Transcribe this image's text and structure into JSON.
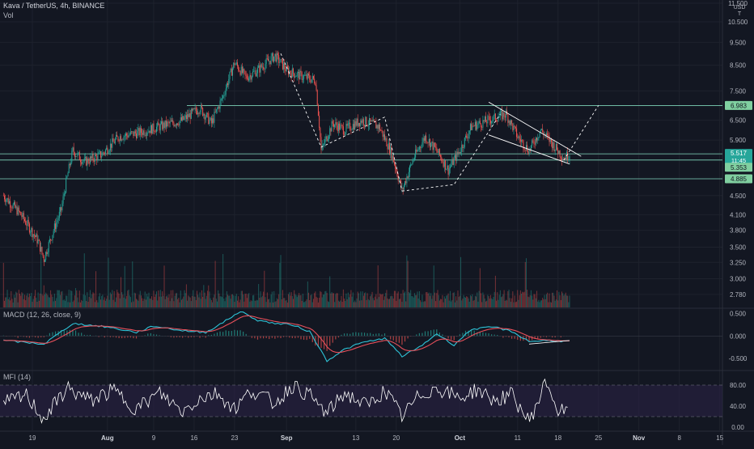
{
  "header": {
    "symbol_line": "Kava / TetherUS, 4h, BINANCE",
    "volume_label": "Vol",
    "currency_top": "11.500",
    "currency_unit_1": "USD",
    "currency_unit_2": "T"
  },
  "colors": {
    "background": "#131722",
    "up": "#26a69a",
    "down": "#ef5350",
    "grid": "#1e222d",
    "level_line": "#7dd3b8",
    "price_tag_green": "#80cfa0",
    "current_price_tag": "#26a69a",
    "macd_line": "#2ec4d8",
    "signal_line": "#e8505b",
    "mfi_line": "#ffffff",
    "mfi_band": "#2a2244"
  },
  "chart_data": [
    {
      "type": "candlestick",
      "title": "Kava / TetherUS, 4h, BINANCE",
      "y_scale": "log",
      "ylim": [
        2.65,
        11.5
      ],
      "y_ticks": [
        "11.500",
        "10.500",
        "9.500",
        "8.500",
        "7.500",
        "6.500",
        "5.900",
        "5.500",
        "5.353",
        "4.885",
        "4.500",
        "4.100",
        "3.800",
        "3.500",
        "3.250",
        "3.000",
        "2.780"
      ],
      "x_ticks": [
        "19",
        "Aug",
        "9",
        "16",
        "23",
        "Sep",
        "13",
        "20",
        "Oct",
        "11",
        "18",
        "25",
        "Nov",
        "8",
        "15"
      ],
      "levels": [
        6.983,
        5.517,
        5.353,
        4.885
      ],
      "level_labels": [
        "6.983",
        "5.517",
        "5.353",
        "4.885"
      ],
      "current_price": "5.517",
      "countdown": "11:45",
      "close_path": [
        {
          "date": "Jul 14",
          "price": 4.5
        },
        {
          "date": "Jul 17",
          "price": 4.1
        },
        {
          "date": "Jul 20",
          "price": 3.6
        },
        {
          "date": "Jul 21",
          "price": 3.3
        },
        {
          "date": "Jul 24",
          "price": 4.2
        },
        {
          "date": "Jul 26",
          "price": 5.6
        },
        {
          "date": "Jul 28",
          "price": 5.3
        },
        {
          "date": "Jul 31",
          "price": 5.5
        },
        {
          "date": "Aug 3",
          "price": 6.0
        },
        {
          "date": "Aug 6",
          "price": 6.1
        },
        {
          "date": "Aug 10",
          "price": 6.3
        },
        {
          "date": "Aug 14",
          "price": 6.5
        },
        {
          "date": "Aug 17",
          "price": 6.9
        },
        {
          "date": "Aug 19",
          "price": 6.4
        },
        {
          "date": "Aug 21",
          "price": 7.3
        },
        {
          "date": "Aug 23",
          "price": 8.6
        },
        {
          "date": "Aug 25",
          "price": 8.0
        },
        {
          "date": "Aug 27",
          "price": 8.3
        },
        {
          "date": "Aug 30",
          "price": 8.9
        },
        {
          "date": "Sep 1",
          "price": 8.3
        },
        {
          "date": "Sep 3",
          "price": 8.1
        },
        {
          "date": "Sep 6",
          "price": 7.9
        },
        {
          "date": "Sep 7",
          "price": 5.6
        },
        {
          "date": "Sep 9",
          "price": 6.4
        },
        {
          "date": "Sep 11",
          "price": 6.2
        },
        {
          "date": "Sep 14",
          "price": 6.5
        },
        {
          "date": "Sep 17",
          "price": 6.3
        },
        {
          "date": "Sep 19",
          "price": 5.6
        },
        {
          "date": "Sep 21",
          "price": 4.6
        },
        {
          "date": "Sep 23",
          "price": 5.4
        },
        {
          "date": "Sep 25",
          "price": 6.0
        },
        {
          "date": "Sep 27",
          "price": 5.6
        },
        {
          "date": "Sep 29",
          "price": 5.1
        },
        {
          "date": "Oct 1",
          "price": 5.6
        },
        {
          "date": "Oct 3",
          "price": 6.3
        },
        {
          "date": "Oct 6",
          "price": 6.5
        },
        {
          "date": "Oct 9",
          "price": 6.7
        },
        {
          "date": "Oct 11",
          "price": 6.0
        },
        {
          "date": "Oct 13",
          "price": 5.6
        },
        {
          "date": "Oct 15",
          "price": 6.2
        },
        {
          "date": "Oct 17",
          "price": 5.8
        },
        {
          "date": "Oct 19",
          "price": 5.4
        },
        {
          "date": "Oct 20",
          "price": 5.517
        }
      ]
    },
    {
      "type": "bar",
      "name": "Vol",
      "description": "volume histogram"
    },
    {
      "type": "line",
      "legend": "MACD (12, 26, close, 9)",
      "ylim": [
        -0.75,
        0.6
      ],
      "y_ticks": [
        "0.500",
        "0.000",
        "-0.500"
      ],
      "macd": [
        {
          "date": "Jul 14",
          "value": -0.1
        },
        {
          "date": "Jul 21",
          "value": -0.18
        },
        {
          "date": "Jul 26",
          "value": 0.28
        },
        {
          "date": "Aug 1",
          "value": 0.2
        },
        {
          "date": "Aug 6",
          "value": 0.08
        },
        {
          "date": "Aug 9",
          "value": 0.22
        },
        {
          "date": "Aug 14",
          "value": 0.12
        },
        {
          "date": "Aug 18",
          "value": 0.08
        },
        {
          "date": "Aug 21",
          "value": 0.3
        },
        {
          "date": "Aug 24",
          "value": 0.55
        },
        {
          "date": "Aug 27",
          "value": 0.35
        },
        {
          "date": "Aug 30",
          "value": 0.28
        },
        {
          "date": "Sep 2",
          "value": 0.25
        },
        {
          "date": "Sep 5",
          "value": 0.1
        },
        {
          "date": "Sep 8",
          "value": -0.55
        },
        {
          "date": "Sep 11",
          "value": -0.3
        },
        {
          "date": "Sep 14",
          "value": -0.15
        },
        {
          "date": "Sep 18",
          "value": -0.05
        },
        {
          "date": "Sep 21",
          "value": -0.45
        },
        {
          "date": "Sep 24",
          "value": -0.25
        },
        {
          "date": "Sep 27",
          "value": 0.05
        },
        {
          "date": "Sep 30",
          "value": -0.2
        },
        {
          "date": "Oct 3",
          "value": 0.15
        },
        {
          "date": "Oct 7",
          "value": 0.2
        },
        {
          "date": "Oct 10",
          "value": 0.1
        },
        {
          "date": "Oct 13",
          "value": -0.12
        },
        {
          "date": "Oct 16",
          "value": -0.1
        },
        {
          "date": "Oct 20",
          "value": -0.12
        }
      ]
    },
    {
      "type": "line",
      "legend": "MFI (14)",
      "ylim": [
        0,
        100
      ],
      "y_ticks": [
        "80.00",
        "40.00",
        "0.00"
      ],
      "band": [
        20,
        80
      ],
      "mfi": [
        {
          "date": "Jul 14",
          "value": 45
        },
        {
          "date": "Jul 18",
          "value": 60
        },
        {
          "date": "Jul 21",
          "value": 15
        },
        {
          "date": "Jul 25",
          "value": 75
        },
        {
          "date": "Jul 29",
          "value": 50
        },
        {
          "date": "Aug 2",
          "value": 70
        },
        {
          "date": "Aug 6",
          "value": 35
        },
        {
          "date": "Aug 10",
          "value": 65
        },
        {
          "date": "Aug 14",
          "value": 30
        },
        {
          "date": "Aug 17",
          "value": 55
        },
        {
          "date": "Aug 20",
          "value": 65
        },
        {
          "date": "Aug 23",
          "value": 35
        },
        {
          "date": "Aug 26",
          "value": 70
        },
        {
          "date": "Aug 30",
          "value": 45
        },
        {
          "date": "Sep 2",
          "value": 80
        },
        {
          "date": "Sep 5",
          "value": 60
        },
        {
          "date": "Sep 8",
          "value": 25
        },
        {
          "date": "Sep 11",
          "value": 65
        },
        {
          "date": "Sep 15",
          "value": 40
        },
        {
          "date": "Sep 18",
          "value": 70
        },
        {
          "date": "Sep 21",
          "value": 20
        },
        {
          "date": "Sep 24",
          "value": 60
        },
        {
          "date": "Sep 27",
          "value": 75
        },
        {
          "date": "Oct 1",
          "value": 55
        },
        {
          "date": "Oct 4",
          "value": 72
        },
        {
          "date": "Oct 7",
          "value": 50
        },
        {
          "date": "Oct 10",
          "value": 62
        },
        {
          "date": "Oct 13",
          "value": 10
        },
        {
          "date": "Oct 16",
          "value": 88
        },
        {
          "date": "Oct 18",
          "value": 30
        },
        {
          "date": "Oct 20",
          "value": 28
        }
      ]
    }
  ]
}
